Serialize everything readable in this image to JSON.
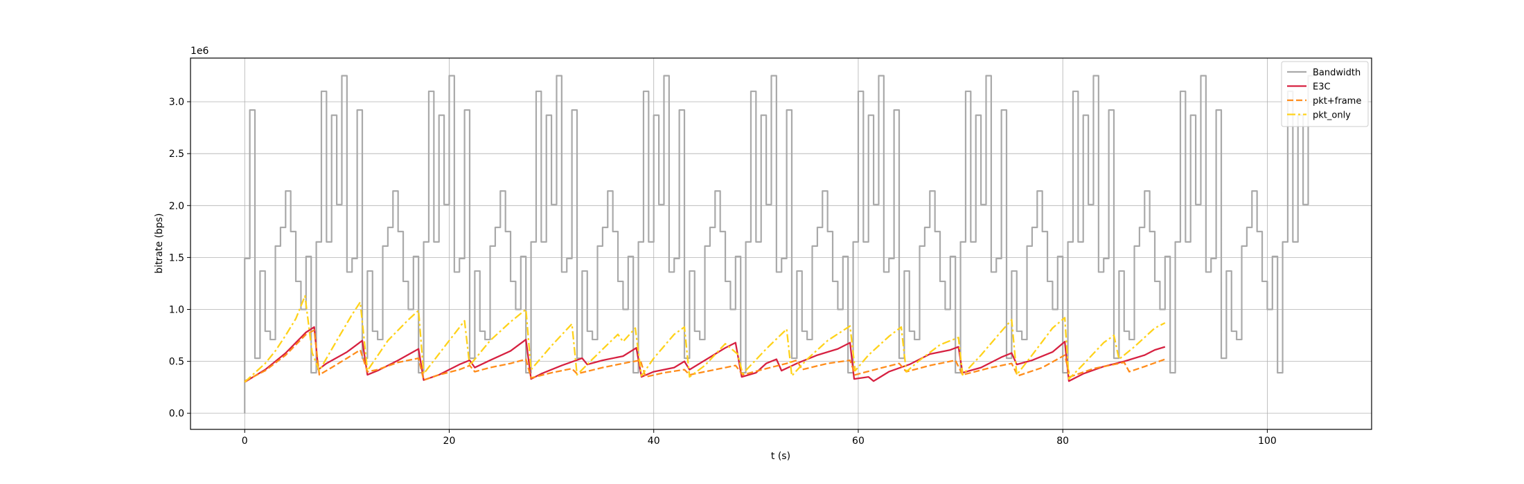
{
  "chart_data": {
    "type": "line",
    "title": "",
    "xlabel": "t (s)",
    "ylabel": "bitrate (bps)",
    "y_offset_label": "1e6",
    "xlim": [
      -5.3,
      110.2
    ],
    "ylim": [
      -155000,
      3420000
    ],
    "x_ticks": [
      0,
      20,
      40,
      60,
      80,
      100
    ],
    "y_ticks": [
      0,
      500000,
      1000000,
      1500000,
      2000000,
      2500000,
      3000000
    ],
    "y_tick_labels": [
      "0.0",
      "0.5",
      "1.0",
      "1.5",
      "2.0",
      "2.5",
      "3.0"
    ],
    "grid": true,
    "legend_position": "top-right",
    "series": [
      {
        "name": "Bandwidth",
        "color": "#a9a9a9",
        "dash": "solid",
        "step": true,
        "period": 10.5,
        "periods": 10,
        "x_end": 104.5,
        "period_pattern": [
          [
            0,
            1490000
          ],
          [
            0.5,
            2920000
          ],
          [
            1.0,
            530000
          ],
          [
            1.5,
            1370000
          ],
          [
            2.0,
            790000
          ],
          [
            2.5,
            710000
          ],
          [
            3.0,
            1610000
          ],
          [
            3.5,
            1790000
          ],
          [
            4.0,
            2140000
          ],
          [
            4.5,
            1750000
          ],
          [
            5.0,
            1270000
          ],
          [
            5.5,
            1000000
          ],
          [
            6.0,
            1510000
          ],
          [
            6.5,
            390000
          ],
          [
            7.0,
            1650000
          ],
          [
            7.5,
            3100000
          ],
          [
            8.0,
            1650000
          ],
          [
            8.5,
            2870000
          ],
          [
            9.0,
            2010000
          ],
          [
            9.5,
            3250000
          ],
          [
            10.0,
            1360000
          ]
        ]
      },
      {
        "name": "E3C",
        "color": "#d62040",
        "dash": "solid",
        "data": [
          [
            0,
            300000
          ],
          [
            2,
            420000
          ],
          [
            4,
            580000
          ],
          [
            6,
            780000
          ],
          [
            6.8,
            830000
          ],
          [
            7.2,
            420000
          ],
          [
            8,
            480000
          ],
          [
            10,
            590000
          ],
          [
            11.5,
            700000
          ],
          [
            12,
            370000
          ],
          [
            13,
            410000
          ],
          [
            15,
            510000
          ],
          [
            17,
            620000
          ],
          [
            17.5,
            320000
          ],
          [
            19,
            370000
          ],
          [
            21,
            470000
          ],
          [
            22,
            510000
          ],
          [
            22.5,
            440000
          ],
          [
            24,
            510000
          ],
          [
            26,
            600000
          ],
          [
            27.5,
            710000
          ],
          [
            28,
            330000
          ],
          [
            29,
            380000
          ],
          [
            31,
            460000
          ],
          [
            33,
            530000
          ],
          [
            33.5,
            470000
          ],
          [
            35,
            510000
          ],
          [
            37,
            550000
          ],
          [
            38.3,
            630000
          ],
          [
            38.8,
            350000
          ],
          [
            40,
            400000
          ],
          [
            42,
            440000
          ],
          [
            43,
            500000
          ],
          [
            43.5,
            420000
          ],
          [
            45,
            510000
          ],
          [
            47,
            630000
          ],
          [
            48,
            680000
          ],
          [
            48.6,
            350000
          ],
          [
            50,
            390000
          ],
          [
            51,
            480000
          ],
          [
            52,
            520000
          ],
          [
            52.5,
            410000
          ],
          [
            54,
            480000
          ],
          [
            56,
            560000
          ],
          [
            58,
            620000
          ],
          [
            59.2,
            680000
          ],
          [
            59.6,
            330000
          ],
          [
            61,
            350000
          ],
          [
            61.5,
            310000
          ],
          [
            63,
            400000
          ],
          [
            65,
            470000
          ],
          [
            67,
            570000
          ],
          [
            69,
            610000
          ],
          [
            69.8,
            640000
          ],
          [
            70.2,
            390000
          ],
          [
            72,
            440000
          ],
          [
            74,
            540000
          ],
          [
            75,
            580000
          ],
          [
            75.5,
            470000
          ],
          [
            77,
            510000
          ],
          [
            79,
            590000
          ],
          [
            80.2,
            690000
          ],
          [
            80.6,
            310000
          ],
          [
            82,
            380000
          ],
          [
            84,
            450000
          ],
          [
            86,
            500000
          ],
          [
            88,
            560000
          ],
          [
            89,
            610000
          ],
          [
            90,
            640000
          ]
        ]
      },
      {
        "name": "pkt+frame",
        "color": "#ff8c1a",
        "dash": "dashed",
        "data": [
          [
            0,
            310000
          ],
          [
            2,
            410000
          ],
          [
            4,
            560000
          ],
          [
            6,
            760000
          ],
          [
            6.8,
            800000
          ],
          [
            7.3,
            370000
          ],
          [
            8.5,
            440000
          ],
          [
            10,
            530000
          ],
          [
            11.3,
            610000
          ],
          [
            12,
            400000
          ],
          [
            13,
            420000
          ],
          [
            15,
            490000
          ],
          [
            17,
            530000
          ],
          [
            17.5,
            320000
          ],
          [
            19,
            370000
          ],
          [
            21,
            420000
          ],
          [
            22,
            460000
          ],
          [
            22.5,
            400000
          ],
          [
            24,
            440000
          ],
          [
            26,
            480000
          ],
          [
            27.5,
            520000
          ],
          [
            28,
            340000
          ],
          [
            30,
            390000
          ],
          [
            32,
            430000
          ],
          [
            32.5,
            380000
          ],
          [
            35,
            440000
          ],
          [
            37.5,
            490000
          ],
          [
            38.7,
            510000
          ],
          [
            39.2,
            350000
          ],
          [
            41,
            390000
          ],
          [
            43,
            420000
          ],
          [
            43.5,
            370000
          ],
          [
            46,
            420000
          ],
          [
            48,
            460000
          ],
          [
            48.7,
            370000
          ],
          [
            51,
            430000
          ],
          [
            53,
            480000
          ],
          [
            54,
            510000
          ],
          [
            54.5,
            420000
          ],
          [
            57,
            480000
          ],
          [
            59.2,
            510000
          ],
          [
            59.7,
            370000
          ],
          [
            62,
            430000
          ],
          [
            64,
            480000
          ],
          [
            64.7,
            400000
          ],
          [
            67,
            460000
          ],
          [
            69.5,
            510000
          ],
          [
            70.2,
            370000
          ],
          [
            73,
            440000
          ],
          [
            75,
            480000
          ],
          [
            75.6,
            360000
          ],
          [
            78,
            440000
          ],
          [
            80.2,
            560000
          ],
          [
            80.7,
            350000
          ],
          [
            83,
            430000
          ],
          [
            85,
            470000
          ],
          [
            86,
            490000
          ],
          [
            86.5,
            400000
          ],
          [
            88,
            450000
          ],
          [
            90,
            520000
          ]
        ]
      },
      {
        "name": "pkt_only",
        "color": "#ffd21a",
        "dash": "dashdot",
        "data": [
          [
            0,
            300000
          ],
          [
            1,
            390000
          ],
          [
            2,
            480000
          ],
          [
            3,
            600000
          ],
          [
            4,
            750000
          ],
          [
            5,
            910000
          ],
          [
            5.9,
            1130000
          ],
          [
            6.6,
            580000
          ],
          [
            7.3,
            410000
          ],
          [
            9,
            700000
          ],
          [
            10.5,
            950000
          ],
          [
            11.3,
            1070000
          ],
          [
            12,
            410000
          ],
          [
            14,
            700000
          ],
          [
            16,
            900000
          ],
          [
            17,
            990000
          ],
          [
            17.5,
            380000
          ],
          [
            20,
            700000
          ],
          [
            21.5,
            890000
          ],
          [
            22,
            460000
          ],
          [
            24,
            700000
          ],
          [
            26,
            880000
          ],
          [
            27.5,
            1000000
          ],
          [
            28,
            420000
          ],
          [
            30,
            650000
          ],
          [
            32,
            860000
          ],
          [
            32.5,
            370000
          ],
          [
            34,
            520000
          ],
          [
            36.5,
            760000
          ],
          [
            37,
            690000
          ],
          [
            38.2,
            820000
          ],
          [
            38.8,
            360000
          ],
          [
            40,
            530000
          ],
          [
            42,
            760000
          ],
          [
            43,
            830000
          ],
          [
            43.5,
            350000
          ],
          [
            45,
            460000
          ],
          [
            47,
            670000
          ],
          [
            48.2,
            570000
          ],
          [
            48.7,
            380000
          ],
          [
            51,
            620000
          ],
          [
            53,
            810000
          ],
          [
            53.5,
            360000
          ],
          [
            55,
            520000
          ],
          [
            57,
            700000
          ],
          [
            59.2,
            840000
          ],
          [
            59.7,
            410000
          ],
          [
            61,
            560000
          ],
          [
            63,
            740000
          ],
          [
            64.2,
            830000
          ],
          [
            64.7,
            400000
          ],
          [
            66,
            510000
          ],
          [
            68,
            660000
          ],
          [
            69.8,
            730000
          ],
          [
            70.2,
            370000
          ],
          [
            72,
            560000
          ],
          [
            74,
            790000
          ],
          [
            75,
            900000
          ],
          [
            75.5,
            370000
          ],
          [
            77,
            560000
          ],
          [
            79,
            820000
          ],
          [
            80.2,
            920000
          ],
          [
            80.6,
            330000
          ],
          [
            82,
            470000
          ],
          [
            84,
            680000
          ],
          [
            85,
            750000
          ],
          [
            85.5,
            520000
          ],
          [
            87,
            640000
          ],
          [
            89,
            820000
          ],
          [
            90,
            870000
          ]
        ]
      }
    ]
  }
}
